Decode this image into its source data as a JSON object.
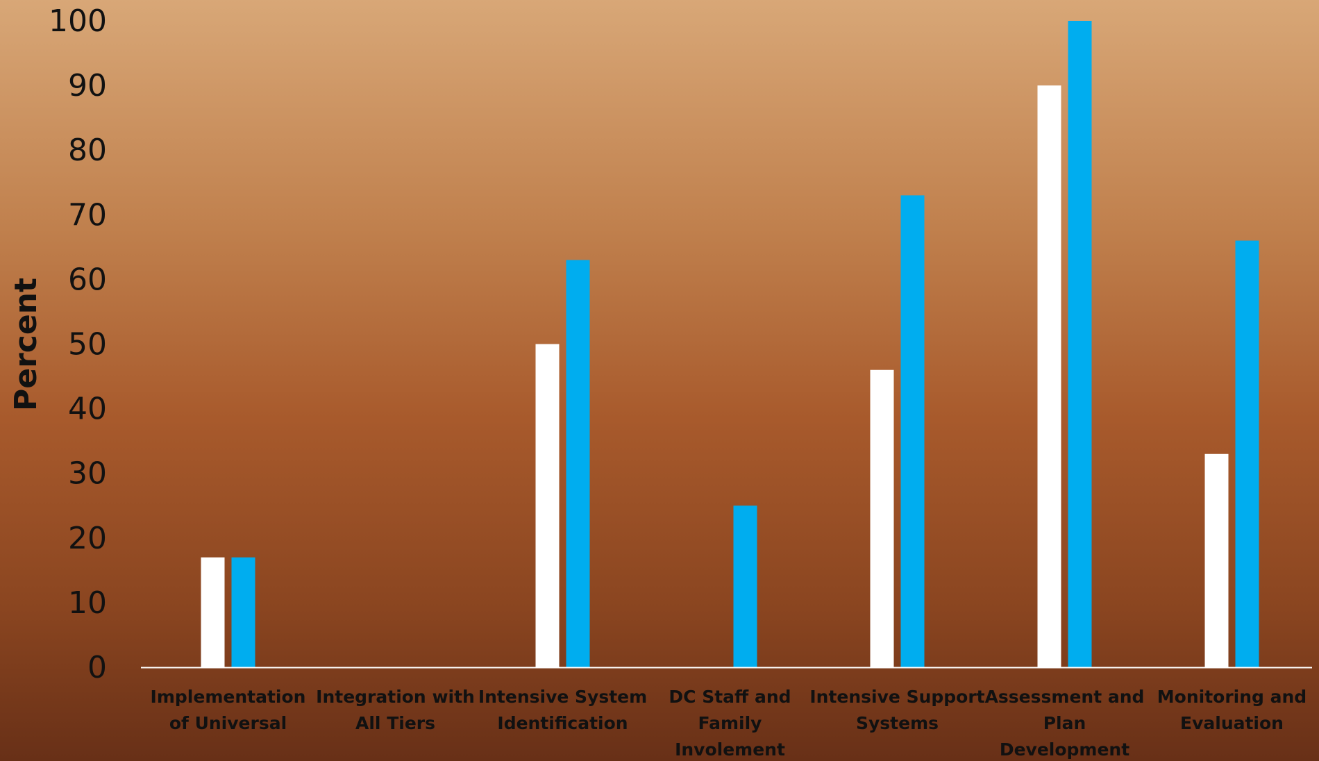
{
  "chart_data": {
    "type": "bar",
    "title": "",
    "xlabel": "",
    "ylabel": "Percent",
    "ylim": [
      0,
      100
    ],
    "yticks": [
      0,
      10,
      20,
      30,
      40,
      50,
      60,
      70,
      80,
      90,
      100
    ],
    "grid": false,
    "legend": "none",
    "categories": [
      [
        "Implementation",
        "of Universal"
      ],
      [
        "Integration with",
        "All Tiers"
      ],
      [
        "Intensive System",
        "Identification"
      ],
      [
        "DC Staff and",
        "Family",
        "Involement"
      ],
      [
        "Intensive Support",
        "Systems"
      ],
      [
        "Assessment and",
        "Plan",
        "Development"
      ],
      [
        "Monitoring and",
        "Evaluation"
      ]
    ],
    "series": [
      {
        "color": "#ffffff",
        "values": [
          17,
          0,
          50,
          0,
          46,
          90,
          33
        ]
      },
      {
        "color": "#00adef",
        "values": [
          17,
          0,
          63,
          25,
          73,
          100,
          66
        ]
      }
    ]
  }
}
